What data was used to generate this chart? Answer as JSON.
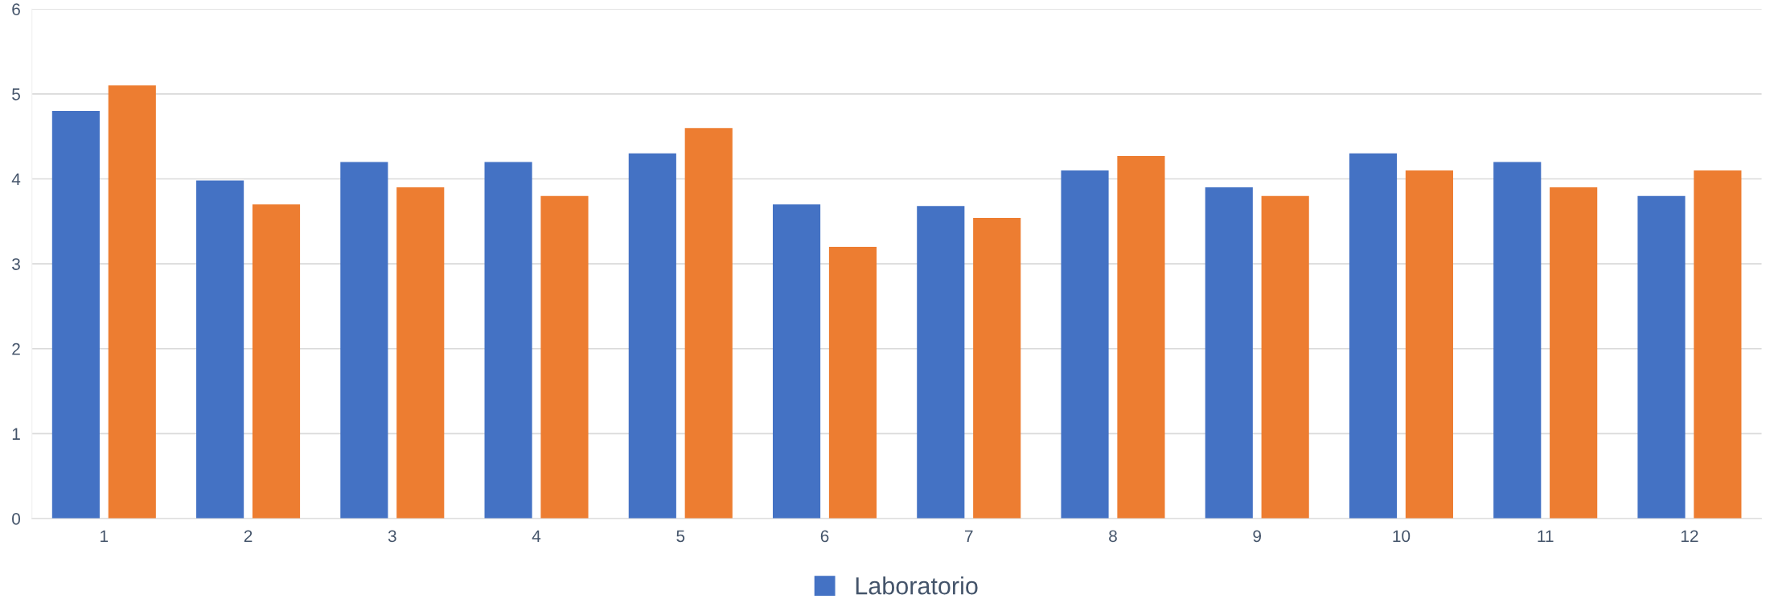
{
  "chart_data": {
    "type": "bar",
    "categories": [
      "1",
      "2",
      "3",
      "4",
      "5",
      "6",
      "7",
      "8",
      "9",
      "10",
      "11",
      "12"
    ],
    "series": [
      {
        "name": "Laboratorio",
        "color": "#4472c4",
        "values": [
          4.8,
          3.98,
          4.2,
          4.2,
          4.3,
          3.7,
          3.68,
          4.1,
          3.9,
          4.3,
          4.2,
          3.8
        ]
      },
      {
        "color": "#ed7d31",
        "values": [
          5.1,
          3.7,
          3.9,
          3.8,
          4.6,
          3.2,
          3.54,
          4.27,
          3.8,
          4.1,
          3.9,
          4.1
        ]
      }
    ],
    "ylim": [
      0,
      6
    ],
    "yticks": [
      0,
      1,
      2,
      3,
      4,
      5,
      6
    ],
    "grid": "y",
    "legend": "bottom"
  }
}
